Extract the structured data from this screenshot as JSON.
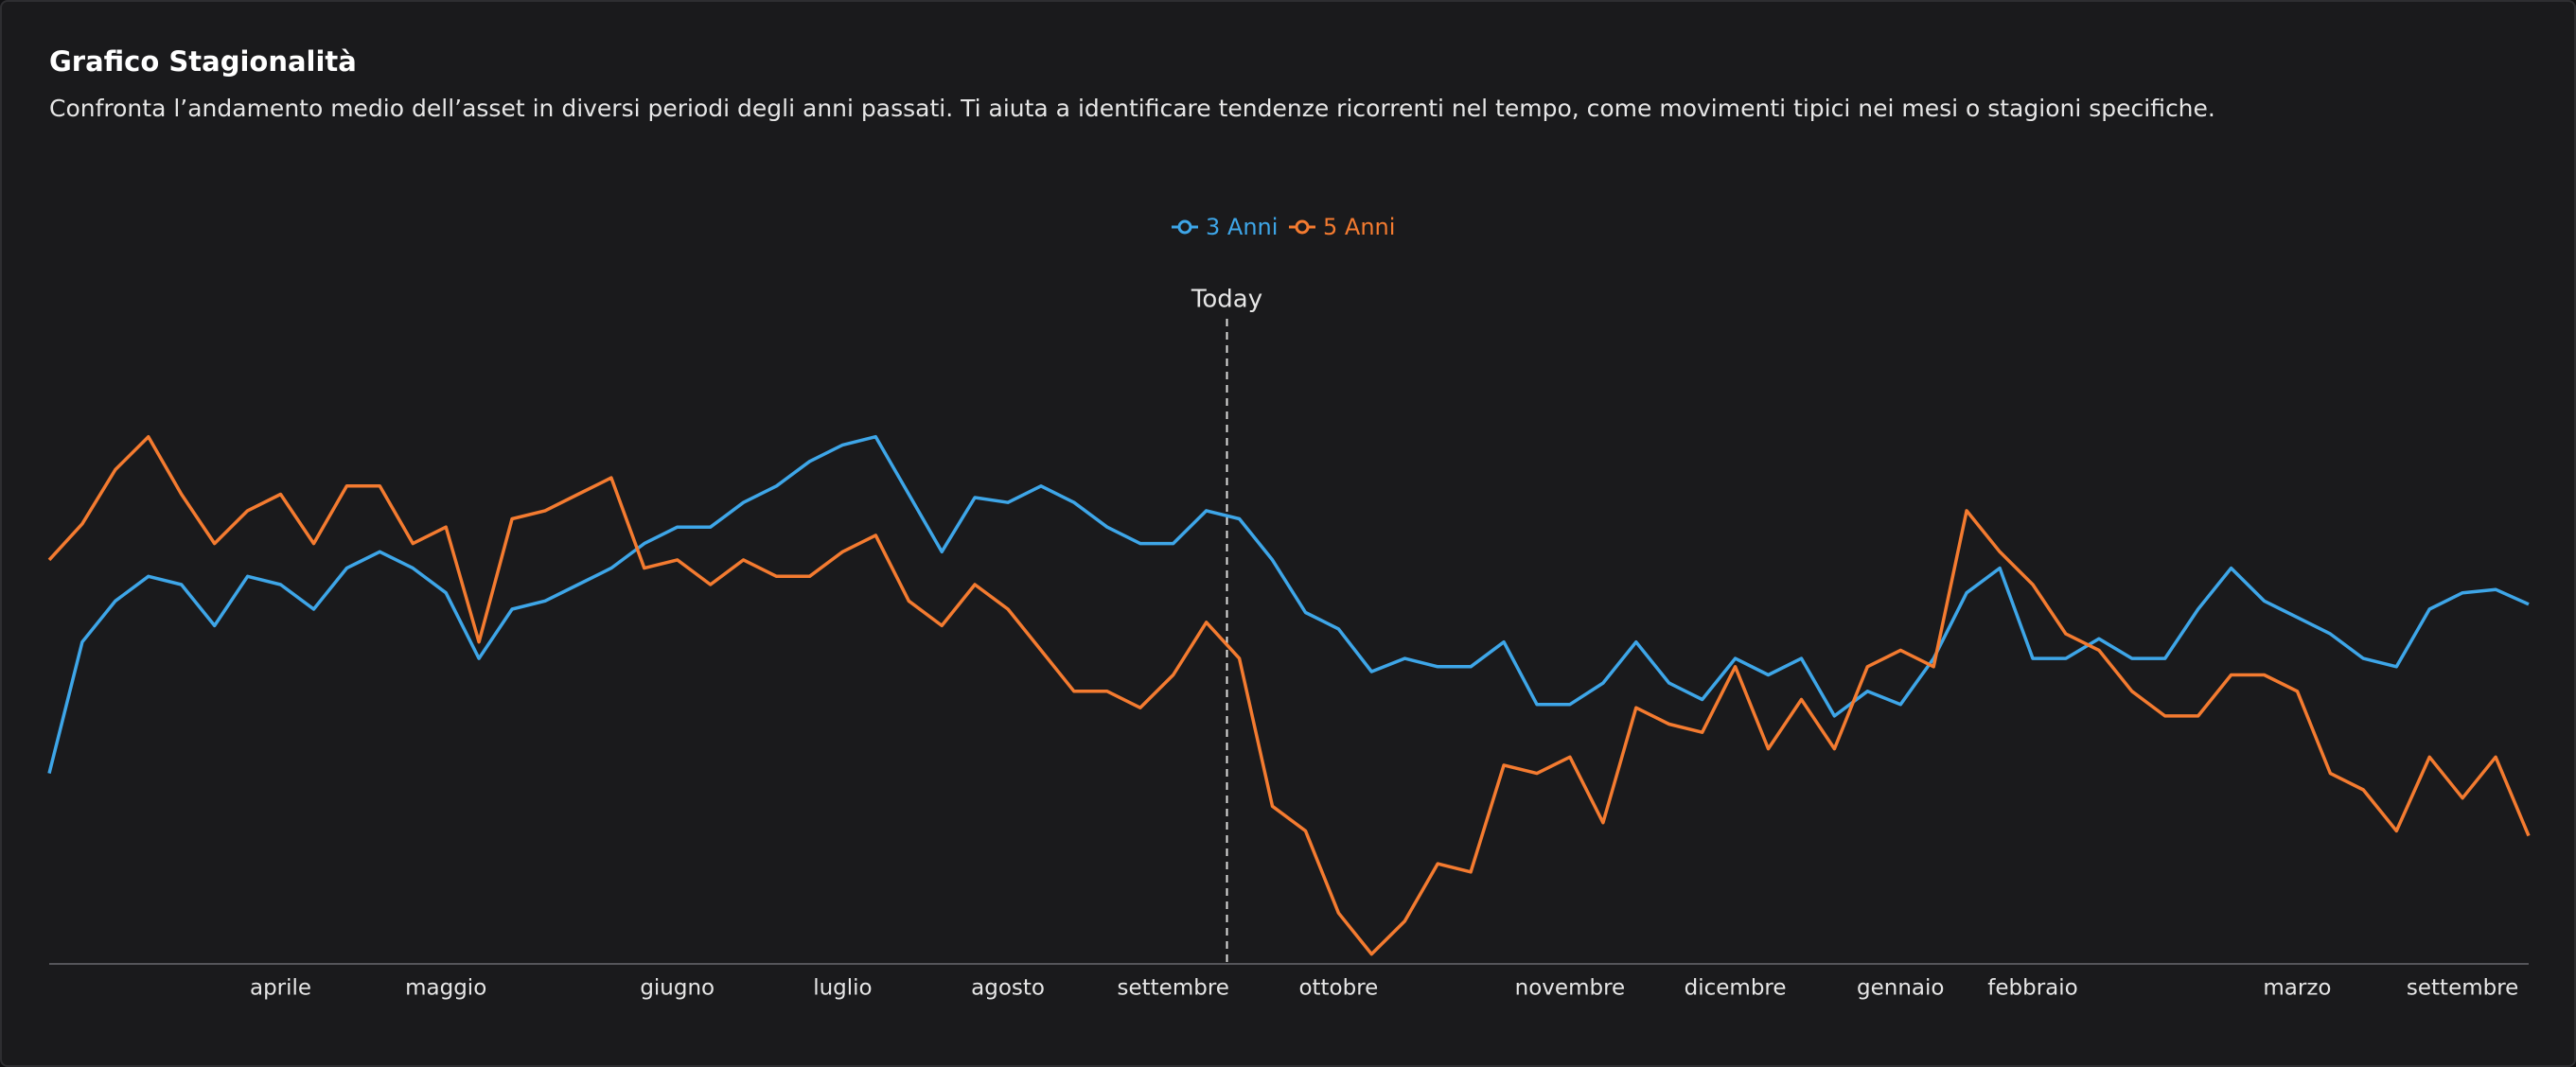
{
  "chart_data": {
    "type": "line",
    "title": "Grafico Stagionalità",
    "subtitle": "Confronta l’andamento medio dell’asset in diversi periodi degli anni passati. Ti aiuta a identificare tendenze ricorrenti nel tempo, come movimenti tipici nei mesi o stagioni specifiche.",
    "annotation": "Today",
    "categories": [
      null,
      null,
      null,
      null,
      null,
      null,
      null,
      "aprile",
      null,
      null,
      null,
      null,
      "maggio",
      null,
      null,
      null,
      null,
      null,
      null,
      "giugno",
      null,
      null,
      null,
      null,
      "luglio",
      null,
      null,
      null,
      null,
      "agosto",
      null,
      null,
      null,
      null,
      "settembre",
      null,
      null,
      null,
      null,
      "ottobre",
      null,
      null,
      null,
      null,
      null,
      null,
      "novembre",
      null,
      null,
      null,
      null,
      "dicembre",
      null,
      null,
      null,
      null,
      "gennaio",
      null,
      null,
      null,
      "febbraio",
      null,
      null,
      null,
      null,
      null,
      null,
      null,
      "marzo",
      null,
      null,
      null,
      null,
      "settembre",
      null,
      null
    ],
    "series": [
      {
        "name": "3 Anni",
        "color": "#3ea6e8",
        "values": [
          116,
          196,
          221,
          236,
          231,
          206,
          236,
          231,
          216,
          241,
          251,
          241,
          226,
          186,
          216,
          221,
          231,
          241,
          256,
          266,
          266,
          281,
          291,
          306,
          316,
          321,
          286,
          251,
          284,
          281,
          291,
          281,
          266,
          256,
          256,
          276,
          271,
          246,
          214,
          204,
          178,
          186,
          181,
          181,
          196,
          158,
          158,
          171,
          196,
          171,
          161,
          186,
          176,
          186,
          151,
          166,
          158,
          186,
          226,
          241,
          186,
          186,
          198,
          186,
          186,
          216,
          241,
          221,
          211,
          201,
          186,
          181,
          216,
          226,
          228,
          219
        ]
      },
      {
        "name": "5 Anni",
        "color": "#f47b30",
        "values": [
          246,
          268,
          301,
          321,
          286,
          256,
          276,
          286,
          256,
          291,
          291,
          256,
          266,
          196,
          271,
          276,
          286,
          296,
          241,
          246,
          231,
          246,
          236,
          236,
          251,
          261,
          221,
          206,
          231,
          216,
          191,
          166,
          166,
          156,
          176,
          208,
          186,
          96,
          81,
          31,
          6,
          26,
          61,
          56,
          121,
          116,
          126,
          86,
          156,
          146,
          141,
          181,
          131,
          161,
          131,
          181,
          191,
          181,
          276,
          251,
          231,
          201,
          191,
          166,
          151,
          151,
          176,
          176,
          166,
          116,
          106,
          81,
          126,
          101,
          126,
          78
        ]
      }
    ]
  }
}
